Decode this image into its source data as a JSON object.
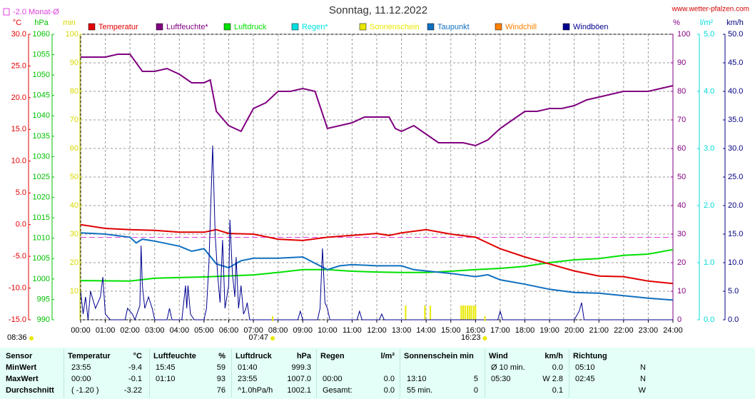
{
  "chart_data": {
    "type": "line",
    "title": "Sonntag, 11.12.2022",
    "source": "www.wetter-pfalzen.com",
    "day_length": "08:36",
    "reference": {
      "label": "-2.0 Monat-Ø",
      "value": -2.0,
      "axis": "celsius",
      "color": "#e040e0"
    },
    "xlim": [
      0,
      24
    ],
    "xticks": [
      {
        "value": 0,
        "label": "00:00"
      },
      {
        "value": 1,
        "label": "01:00"
      },
      {
        "value": 2,
        "label": "02:00"
      },
      {
        "value": 3,
        "label": "03:00"
      },
      {
        "value": 4,
        "label": "04:00"
      },
      {
        "value": 5,
        "label": "05:00"
      },
      {
        "value": 6,
        "label": "06:00"
      },
      {
        "value": 7,
        "label": "07:00"
      },
      {
        "value": 8,
        "label": "08:00"
      },
      {
        "value": 9,
        "label": "09:00"
      },
      {
        "value": 10,
        "label": "10:00"
      },
      {
        "value": 11,
        "label": "11:00"
      },
      {
        "value": 12,
        "label": "12:00"
      },
      {
        "value": 13,
        "label": "13:00"
      },
      {
        "value": 14,
        "label": "14:00"
      },
      {
        "value": 15,
        "label": "15:00"
      },
      {
        "value": 16,
        "label": "16:00"
      },
      {
        "value": 17,
        "label": "17:00"
      },
      {
        "value": 18,
        "label": "18:00"
      },
      {
        "value": 19,
        "label": "19:00"
      },
      {
        "value": 20,
        "label": "20:00"
      },
      {
        "value": 21,
        "label": "21:00"
      },
      {
        "value": 22,
        "label": "22:00"
      },
      {
        "value": 23,
        "label": "23:00"
      },
      {
        "value": 24,
        "label": "24:00"
      }
    ],
    "sun_markers": [
      {
        "x": 7.78,
        "label": "07:47"
      },
      {
        "x": 16.38,
        "label": "16:23"
      }
    ],
    "grid": true,
    "grid_axis": "pct",
    "axes": {
      "celsius": {
        "unit": "°C",
        "color": "#e00000",
        "lim": [
          -15,
          30
        ],
        "ticks": [
          {
            "value": 30,
            "label": "30.0"
          },
          {
            "value": 25,
            "label": "25.0"
          },
          {
            "value": 20,
            "label": "20.0"
          },
          {
            "value": 15,
            "label": "15.0"
          },
          {
            "value": 10,
            "label": "10.0"
          },
          {
            "value": 5,
            "label": "5.0"
          },
          {
            "value": 0,
            "label": "0.0"
          },
          {
            "value": -5,
            "label": "-5.0"
          },
          {
            "value": -10,
            "label": "-10.0"
          },
          {
            "value": -15,
            "label": "-15.0"
          }
        ]
      },
      "hpa": {
        "unit": "hPa",
        "color": "#00c000",
        "lim": [
          990,
          1060
        ],
        "ticks": [
          1060,
          1055,
          1050,
          1045,
          1040,
          1035,
          1030,
          1025,
          1020,
          1015,
          1010,
          1005,
          1000,
          995,
          990
        ]
      },
      "min": {
        "unit": "min",
        "color": "#d8d800",
        "lim": [
          0,
          100
        ],
        "ticks": [
          100,
          90,
          80,
          70,
          60,
          50,
          40,
          30,
          20,
          10
        ]
      },
      "pct": {
        "unit": "%",
        "color": "#800080",
        "lim": [
          0,
          100
        ],
        "ticks": [
          100,
          90,
          80,
          70,
          60,
          50,
          40,
          30,
          20,
          10,
          0
        ]
      },
      "rain": {
        "unit": "l/m²",
        "color": "#00d8d8",
        "lim": [
          0,
          5
        ],
        "ticks": [
          {
            "value": 5,
            "label": "5.0"
          },
          {
            "value": 4,
            "label": "4.0"
          },
          {
            "value": 3,
            "label": "3.0"
          },
          {
            "value": 2,
            "label": "2.0"
          },
          {
            "value": 1,
            "label": "1.0"
          },
          {
            "value": 0,
            "label": "0.0"
          }
        ]
      },
      "kmh": {
        "unit": "km/h",
        "color": "#000080",
        "lim": [
          0,
          50
        ],
        "ticks": [
          {
            "value": 50,
            "label": "50.0"
          },
          {
            "value": 45,
            "label": "45.0"
          },
          {
            "value": 40,
            "label": "40.0"
          },
          {
            "value": 35,
            "label": "35.0"
          },
          {
            "value": 30,
            "label": "30.0"
          },
          {
            "value": 25,
            "label": "25.0"
          },
          {
            "value": 20,
            "label": "20.0"
          },
          {
            "value": 15,
            "label": "15.0"
          },
          {
            "value": 10,
            "label": "10.0"
          },
          {
            "value": 5,
            "label": "5.0"
          },
          {
            "value": 0,
            "label": "0.0"
          }
        ]
      }
    },
    "series": [
      {
        "name": "Temperatur",
        "color": "#e00000",
        "axis": "celsius",
        "kind": "line",
        "x": [
          0,
          1,
          2,
          3,
          4,
          5,
          5.5,
          6,
          7,
          8,
          9,
          10,
          11,
          12,
          12.5,
          13,
          14,
          15,
          16,
          16.5,
          17,
          18,
          19,
          20,
          21,
          22,
          23,
          24
        ],
        "values": [
          0,
          -0.6,
          -0.8,
          -0.9,
          -1.2,
          -1.2,
          -0.8,
          -1.4,
          -1.5,
          -2.3,
          -2.5,
          -2,
          -1.7,
          -1.4,
          -1.7,
          -1.3,
          -0.8,
          -1.5,
          -2,
          -2.9,
          -3.8,
          -5.1,
          -6.2,
          -7.3,
          -8.1,
          -8.2,
          -8.9,
          -9.3
        ]
      },
      {
        "name": "Luftfeuchte*",
        "color": "#800080",
        "axis": "pct",
        "kind": "line",
        "x": [
          0,
          1,
          1.5,
          2,
          2.5,
          3,
          3.5,
          4,
          4.5,
          5,
          5.25,
          5.5,
          6,
          6.5,
          6.75,
          7,
          7.5,
          8,
          8.5,
          9,
          9.5,
          10,
          10.5,
          11,
          11.5,
          12,
          12.5,
          12.75,
          13,
          13.5,
          14,
          14.5,
          15,
          15.5,
          16,
          16.5,
          17,
          17.5,
          18,
          18.5,
          19,
          19.5,
          20,
          20.5,
          21,
          21.5,
          22,
          22.5,
          23,
          23.5,
          24
        ],
        "values": [
          92,
          92,
          93,
          93,
          87,
          87,
          88,
          86,
          83,
          83,
          84,
          73,
          68,
          66,
          70,
          74,
          76,
          80,
          80,
          81,
          80,
          67,
          68,
          69,
          71,
          71,
          71,
          67,
          66,
          68,
          65,
          62,
          62,
          62,
          61,
          63,
          67,
          70,
          73,
          73,
          74,
          74,
          75,
          77,
          78,
          79,
          80,
          80,
          80,
          81,
          82
        ]
      },
      {
        "name": "Luftdruck",
        "color": "#00e000",
        "axis": "hpa",
        "kind": "line",
        "x": [
          0,
          2,
          3,
          5,
          7,
          8,
          9,
          10,
          11,
          12,
          13,
          14,
          15,
          16,
          17,
          18,
          19,
          20,
          21,
          22,
          23,
          24
        ],
        "values": [
          999.6,
          999.5,
          1000.2,
          1000.5,
          1001,
          1001.6,
          1002.3,
          1002.3,
          1001.9,
          1001.7,
          1001.6,
          1001.6,
          1001.9,
          1002.3,
          1002.6,
          1003.1,
          1004,
          1004.7,
          1005,
          1005.8,
          1006.1,
          1007.2
        ]
      },
      {
        "name": "Regen*",
        "color": "#00e0e0",
        "axis": "rain",
        "kind": "bar",
        "x": [],
        "values": []
      },
      {
        "name": "Sonnenschein",
        "color": "#e8e800",
        "axis": "min",
        "kind": "bar",
        "x": [
          13.17,
          13.95,
          14.17,
          15.42,
          15.5,
          15.58,
          15.67,
          15.75,
          15.83,
          15.92,
          16.0
        ],
        "values": [
          5,
          5,
          5,
          5,
          5,
          5,
          5,
          5,
          5,
          5,
          5
        ]
      },
      {
        "name": "Taupunkt",
        "color": "#1070c0",
        "axis": "celsius",
        "kind": "line",
        "x": [
          0,
          1,
          2,
          2.25,
          2.5,
          3,
          4,
          4.5,
          5,
          5.5,
          6,
          6.5,
          7,
          8,
          9,
          10,
          10.5,
          11,
          12,
          13,
          13.5,
          14,
          15,
          16,
          16.5,
          17,
          18,
          19,
          20,
          21,
          22,
          23,
          24
        ],
        "values": [
          -1.3,
          -1.5,
          -2,
          -2.9,
          -2.3,
          -2.6,
          -3.4,
          -4.2,
          -3.8,
          -6.2,
          -6.8,
          -5.7,
          -5.3,
          -5.3,
          -5.1,
          -7.1,
          -6.5,
          -6.3,
          -6.5,
          -6.5,
          -7.1,
          -7.3,
          -7.7,
          -8.2,
          -7.9,
          -8.7,
          -9.4,
          -10.2,
          -10.7,
          -10.8,
          -11.2,
          -11.6,
          -11.9
        ]
      },
      {
        "name": "Windchill",
        "color": "#ff8000",
        "axis": "celsius",
        "kind": "line",
        "x": [],
        "values": []
      },
      {
        "name": "Windböen",
        "color": "#000090",
        "axis": "kmh",
        "kind": "line",
        "x": [
          0,
          0.1,
          0.2,
          0.3,
          0.4,
          0.6,
          0.8,
          0.9,
          1.0,
          1.2,
          1.8,
          1.9,
          2.1,
          2.2,
          2.4,
          2.45,
          2.5,
          2.6,
          2.75,
          2.9,
          3.0,
          3.5,
          3.6,
          3.7,
          4.1,
          4.25,
          4.3,
          4.35,
          4.45,
          4.6,
          5.0,
          5.1,
          5.2,
          5.35,
          5.45,
          5.55,
          5.65,
          5.75,
          5.85,
          6.0,
          6.05,
          6.15,
          6.25,
          6.3,
          6.4,
          6.5,
          6.6,
          6.7,
          6.75,
          6.85,
          7.0,
          8.8,
          8.9,
          9.0,
          9.6,
          9.7,
          9.8,
          9.9,
          10.0,
          10.1,
          11.2,
          11.3,
          11.4,
          12.1,
          12.2,
          12.3,
          16.9,
          17.0,
          17.1,
          20.0,
          20.2,
          20.3,
          20.4,
          24
        ],
        "values": [
          5,
          1,
          4,
          0,
          5,
          2,
          4,
          7.5,
          1,
          0,
          0,
          2,
          1,
          0,
          2.5,
          13,
          6,
          2,
          4,
          2,
          0,
          0,
          2,
          0,
          0,
          6,
          2,
          6,
          1,
          0,
          0,
          2,
          10,
          30.5,
          15,
          8,
          3,
          14,
          2,
          6,
          17.5,
          8,
          4,
          11,
          2,
          6,
          1,
          2,
          3,
          0,
          0,
          0,
          1.5,
          0,
          0,
          2,
          12.5,
          3,
          2,
          0,
          0,
          1.5,
          0,
          0,
          1,
          0,
          0,
          1.5,
          0,
          0,
          1.5,
          3,
          0,
          0
        ]
      }
    ]
  },
  "table": {
    "groups": [
      {
        "title": "Sensor",
        "rows": [
          "MinWert",
          "MaxWert",
          "Durchschnitt"
        ]
      },
      {
        "title": "Temperatur",
        "unit": "°C",
        "rows": [
          [
            "23:55",
            "-9.4"
          ],
          [
            "00:00",
            "-0.1"
          ],
          [
            "( -1.20 )",
            "-3.22"
          ]
        ]
      },
      {
        "title": "Luftfeuchte",
        "unit": "%",
        "rows": [
          [
            "15:45",
            "59"
          ],
          [
            "01:10",
            "93"
          ],
          [
            null,
            "76"
          ]
        ]
      },
      {
        "title": "Luftdruck",
        "unit": "hPa",
        "rows": [
          [
            "01:40",
            "999.3"
          ],
          [
            "23:55",
            "1007.0"
          ],
          [
            "^1.0hPa/h",
            "1002.1"
          ]
        ]
      },
      {
        "title": "Regen",
        "unit": "l/m²",
        "rows": [
          [
            null,
            null
          ],
          [
            "00:00",
            "0.0"
          ],
          [
            "Gesamt:",
            "0.0"
          ]
        ]
      },
      {
        "title": "Sonnenschein min",
        "rows": [
          [
            null,
            null
          ],
          [
            "13:10",
            "5"
          ],
          [
            "55 min.",
            "0"
          ]
        ]
      },
      {
        "title": "Wind",
        "unit": "km/h",
        "rows": [
          [
            "Ø 10 min.",
            "0.0"
          ],
          [
            "05:30",
            "W 2.8"
          ],
          [
            null,
            "0.1"
          ]
        ]
      },
      {
        "title": "Richtung",
        "rows": [
          [
            "05:10",
            "N"
          ],
          [
            "02:45",
            "N"
          ],
          [
            null,
            "W"
          ]
        ]
      }
    ]
  }
}
